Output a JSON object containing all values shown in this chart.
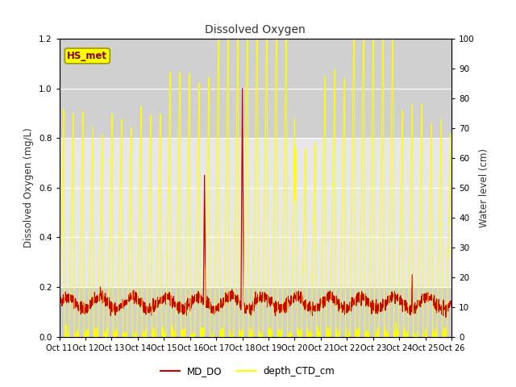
{
  "title": "Dissolved Oxygen",
  "ylabel_left": "Dissolved Oxygen (mg/L)",
  "ylabel_right": "Water level (cm)",
  "ylim_left": [
    0.0,
    1.2
  ],
  "ylim_right": [
    0,
    100
  ],
  "yticks_left": [
    0.0,
    0.2,
    0.4,
    0.6,
    0.8,
    1.0,
    1.2
  ],
  "yticks_right": [
    0,
    10,
    20,
    30,
    40,
    50,
    60,
    70,
    80,
    90,
    100
  ],
  "xtick_labels": [
    "Oct 11",
    "Oct 12",
    "Oct 13",
    "Oct 14",
    "Oct 15",
    "Oct 16",
    "Oct 17",
    "Oct 18",
    "Oct 19",
    "Oct 20",
    "Oct 21",
    "Oct 22",
    "Oct 23",
    "Oct 24",
    "Oct 25",
    "Oct 26"
  ],
  "fig_bg_color": "#ffffff",
  "plot_bg_color": "#e8e8e8",
  "band_top_color": "#d0d0d0",
  "band_mid_color": "#e8e8e8",
  "band_bot_color": "#d0d0d0",
  "annotation_text": "HS_met",
  "annotation_box_color": "#ffff00",
  "annotation_text_color": "#8b0000",
  "line_do_color": "#cc0000",
  "line_ctd_color": "#ffff00",
  "legend_do_label": "MD_DO",
  "legend_ctd_label": "depth_CTD_cm"
}
